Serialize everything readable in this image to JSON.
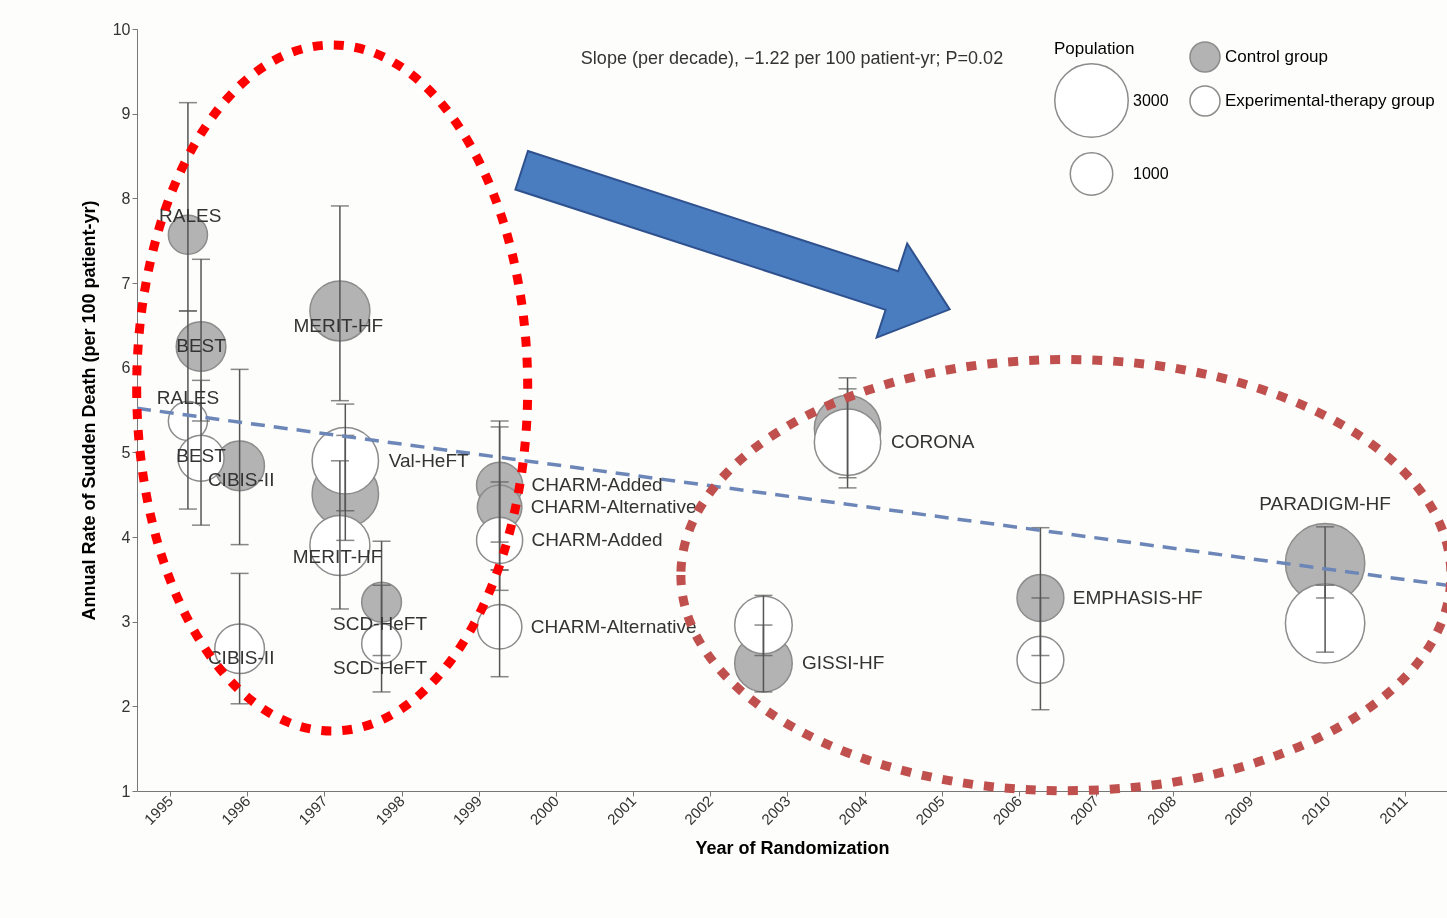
{
  "chart_data": {
    "type": "bubble",
    "xlabel": "Year of Randomization",
    "ylabel": "Annual Rate of Sudden Death (per 100 patient-yr)",
    "legend_title": "Population",
    "size_legend": [
      3000,
      1000
    ],
    "xlim": [
      1994.57,
      2011.55
    ],
    "ylim": [
      1,
      10
    ],
    "xticks": [
      1995,
      1996,
      1997,
      1998,
      1999,
      2000,
      2001,
      2002,
      2003,
      2004,
      2005,
      2006,
      2007,
      2008,
      2009,
      2010,
      2011
    ],
    "yticks": [
      1,
      2,
      3,
      4,
      5,
      6,
      7,
      8,
      9,
      10
    ],
    "grid": false,
    "legend": "top right",
    "annotations": [
      "Slope (per decade), −1.22 per 100 patient-yr; P=0.02",
      {
        "text": "RALES",
        "x": 1995.26,
        "y": 7.79
      },
      {
        "text": "MERIT-HF",
        "x": 1997.18,
        "y": 6.49
      },
      {
        "text": "BEST",
        "x": 1995.4,
        "y": 6.26
      },
      {
        "text": "RALES",
        "x": 1995.23,
        "y": 5.64
      },
      {
        "text": "BEST",
        "x": 1995.4,
        "y": 4.96
      },
      {
        "text": "CIBIS-II",
        "x": 1995.92,
        "y": 4.67
      },
      {
        "text": "Val-HeFT",
        "x": 1997.27,
        "y": 4.9
      },
      {
        "text": "MERIT-HF",
        "x": 1997.17,
        "y": 3.76
      },
      {
        "text": "SCD-HeFT",
        "x": 1997.72,
        "y": 2.97
      },
      {
        "text": "SCD-HeFT",
        "x": 1997.72,
        "y": 2.45
      },
      {
        "text": "CIBIS-II",
        "x": 1995.92,
        "y": 2.57
      },
      {
        "text": "CHARM-Added",
        "x": 1999.27,
        "y": 4.61
      },
      {
        "text": "CHARM-Alternative",
        "x": 1999.27,
        "y": 4.35
      },
      {
        "text": "CHARM-Added",
        "x": 1999.27,
        "y": 3.96
      },
      {
        "text": "CHARM-Alternative",
        "x": 1999.27,
        "y": 2.94
      },
      {
        "text": "GISSI-HF",
        "x": 2002.69,
        "y": 2.51
      },
      {
        "text": "CORONA",
        "x": 2003.78,
        "y": 5.12
      },
      {
        "text": "EMPHASIS-HF",
        "x": 2006.28,
        "y": 3.28
      },
      {
        "text": "PARADIGM-HF",
        "x": 2009.97,
        "y": 3.69
      }
    ],
    "series": [
      {
        "name": "Control group",
        "color": "#b3b3b3",
        "x": [
          1995.23,
          1995.4,
          1995.9,
          1997.2,
          1997.27,
          1997.74,
          1999.27,
          1999.27,
          2002.69,
          2003.78,
          2006.28,
          2009.97
        ],
        "values": [
          7.57,
          6.25,
          4.84,
          6.67,
          4.51,
          3.23,
          4.61,
          4.35,
          2.51,
          5.28,
          3.28,
          3.69
        ],
        "sizes": [
          850,
          1370,
          1370,
          2000,
          2450,
          880,
          1180,
          1100,
          1840,
          2450,
          1220,
          3500
        ],
        "errors": [
          [
            6.67,
            9.13
          ],
          [
            5.37,
            7.28
          ],
          [
            3.91,
            5.98
          ],
          [
            5.61,
            7.91
          ],
          [
            3.96,
            5.2
          ],
          [
            2.6,
            3.95
          ],
          [
            3.94,
            5.37
          ],
          [
            3.61,
            5.3
          ],
          [
            2.17,
            2.96
          ],
          [
            4.7,
            5.88
          ],
          [
            2.6,
            4.11
          ],
          [
            3.28,
            4.12
          ]
        ]
      },
      {
        "name": "Experimental-therapy group",
        "color": "#ffffff",
        "x": [
          1995.23,
          1995.4,
          1995.9,
          1997.2,
          1997.27,
          1997.74,
          1999.27,
          1999.27,
          2002.69,
          2003.78,
          2006.28,
          2009.97
        ],
        "values": [
          5.37,
          4.93,
          2.68,
          3.9,
          4.9,
          2.74,
          3.96,
          2.94,
          2.96,
          5.12,
          2.55,
          2.98
        ],
        "sizes": [
          850,
          1180,
          1370,
          2000,
          2450,
          880,
          1180,
          1100,
          1840,
          2450,
          1220,
          3500
        ],
        "errors": [
          [
            4.33,
            6.67
          ],
          [
            4.14,
            5.85
          ],
          [
            2.03,
            3.57
          ],
          [
            3.15,
            4.9
          ],
          [
            4.31,
            5.57
          ],
          [
            2.17,
            3.43
          ],
          [
            3.37,
            4.65
          ],
          [
            2.35,
            3.61
          ],
          [
            2.6,
            3.31
          ],
          [
            4.58,
            5.75
          ],
          [
            1.96,
            3.28
          ],
          [
            2.64,
            3.43
          ]
        ]
      },
      {
        "type": "line",
        "color": "#6c86b8",
        "line_style": "dashed",
        "x": [
          1994.57,
          2011.55
        ],
        "values": [
          5.52,
          3.43
        ]
      }
    ]
  }
}
